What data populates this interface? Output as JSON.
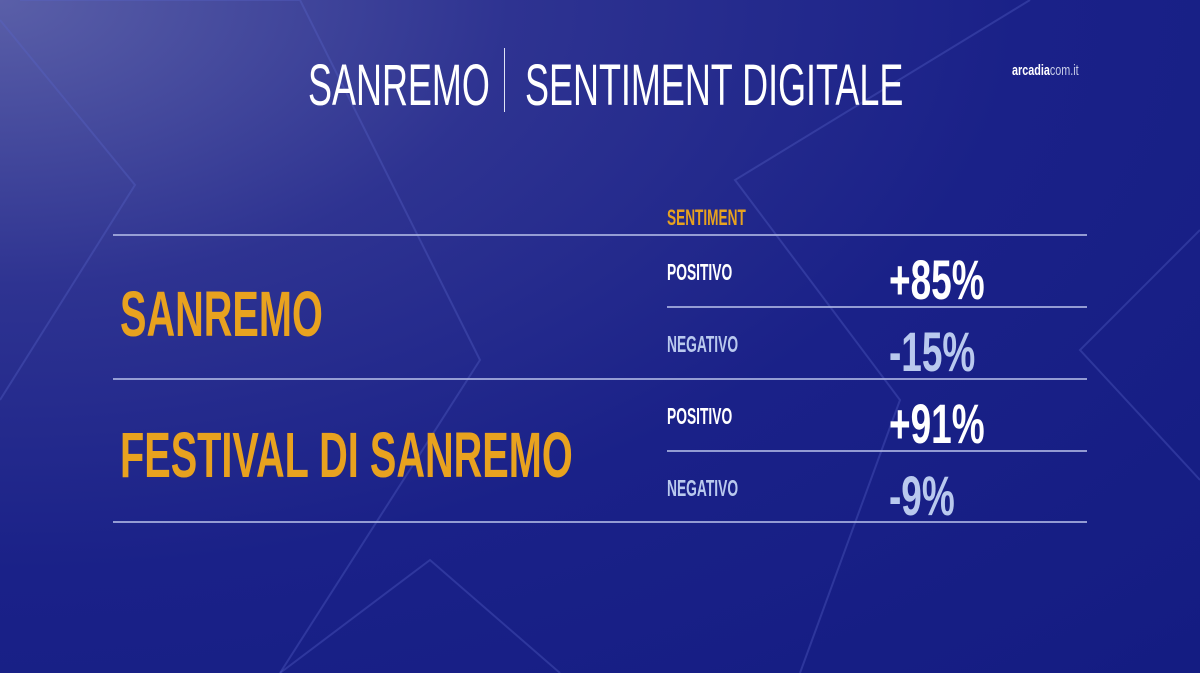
{
  "header": {
    "title_left": "SANREMO",
    "title_right": "SENTIMENT DIGITALE",
    "brand_bold": "arcadia",
    "brand_rest": "com.it"
  },
  "table": {
    "column_header": "SENTIMENT",
    "rows": [
      {
        "category": "SANREMO",
        "positive_label": "POSITIVO",
        "positive_value": "+85%",
        "negative_label": "NEGATIVO",
        "negative_value": "-15%"
      },
      {
        "category": "FESTIVAL DI SANREMO",
        "positive_label": "POSITIVO",
        "positive_value": "+91%",
        "negative_label": "NEGATIVO",
        "negative_value": "-9%"
      }
    ]
  },
  "colors": {
    "accent": "#e8a21f",
    "positive": "#ffffff",
    "negative": "#b9c9ee",
    "background": "#1a2188"
  }
}
